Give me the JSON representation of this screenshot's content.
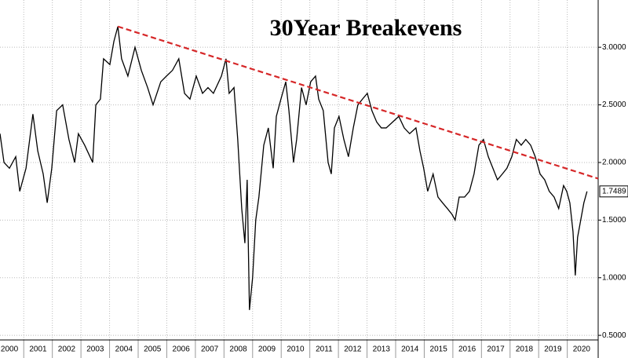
{
  "chart_data": {
    "type": "line",
    "title": "30Year Breakevens",
    "x": [
      2000.17,
      2000.31,
      2000.5,
      2000.72,
      2000.86,
      2001.08,
      2001.32,
      2001.49,
      2001.68,
      2001.82,
      2001.98,
      2002.15,
      2002.36,
      2002.58,
      2002.78,
      2002.91,
      2003.13,
      2003.41,
      2003.52,
      2003.68,
      2003.79,
      2004.01,
      2004.15,
      2004.29,
      2004.42,
      2004.64,
      2004.89,
      2005.11,
      2005.33,
      2005.52,
      2005.79,
      2005.99,
      2006.2,
      2006.42,
      2006.62,
      2006.81,
      2007.03,
      2007.25,
      2007.44,
      2007.63,
      2007.91,
      2008.07,
      2008.18,
      2008.35,
      2008.48,
      2008.62,
      2008.73,
      2008.81,
      2008.89,
      2009.0,
      2009.11,
      2009.22,
      2009.39,
      2009.55,
      2009.72,
      2009.83,
      2009.99,
      2010.16,
      2010.27,
      2010.43,
      2010.54,
      2010.71,
      2010.87,
      2011.03,
      2011.2,
      2011.31,
      2011.47,
      2011.64,
      2011.75,
      2011.86,
      2012.02,
      2012.19,
      2012.35,
      2012.52,
      2012.68,
      2012.84,
      2013.01,
      2013.17,
      2013.34,
      2013.5,
      2013.67,
      2013.89,
      2014.11,
      2014.3,
      2014.49,
      2014.71,
      2014.85,
      2014.98,
      2015.12,
      2015.31,
      2015.48,
      2015.64,
      2015.81,
      2015.97,
      2016.08,
      2016.22,
      2016.41,
      2016.58,
      2016.74,
      2016.91,
      2017.07,
      2017.24,
      2017.4,
      2017.56,
      2017.73,
      2017.89,
      2018.06,
      2018.22,
      2018.39,
      2018.55,
      2018.72,
      2018.88,
      2019.05,
      2019.21,
      2019.37,
      2019.54,
      2019.7,
      2019.87,
      2019.98,
      2020.09,
      2020.2,
      2020.28,
      2020.36,
      2020.47,
      2020.58,
      2020.69
    ],
    "series": [
      {
        "name": "30Year Breakevens",
        "color": "#000000",
        "values": [
          2.25,
          2.0,
          1.95,
          2.05,
          1.75,
          1.95,
          2.42,
          2.1,
          1.9,
          1.65,
          1.95,
          2.45,
          2.5,
          2.2,
          2.0,
          2.25,
          2.15,
          2.0,
          2.5,
          2.55,
          2.9,
          2.85,
          3.05,
          3.18,
          2.9,
          2.75,
          3.0,
          2.8,
          2.65,
          2.5,
          2.7,
          2.75,
          2.8,
          2.9,
          2.6,
          2.55,
          2.75,
          2.6,
          2.65,
          2.6,
          2.75,
          2.9,
          2.6,
          2.65,
          2.2,
          1.6,
          1.3,
          1.85,
          0.72,
          1.0,
          1.5,
          1.7,
          2.15,
          2.3,
          1.95,
          2.4,
          2.55,
          2.7,
          2.45,
          2.0,
          2.2,
          2.65,
          2.5,
          2.7,
          2.75,
          2.55,
          2.45,
          2.0,
          1.9,
          2.3,
          2.4,
          2.2,
          2.05,
          2.3,
          2.5,
          2.55,
          2.6,
          2.45,
          2.35,
          2.3,
          2.3,
          2.35,
          2.4,
          2.3,
          2.25,
          2.3,
          2.1,
          1.95,
          1.75,
          1.9,
          1.7,
          1.65,
          1.6,
          1.55,
          1.5,
          1.7,
          1.7,
          1.75,
          1.9,
          2.15,
          2.2,
          2.05,
          1.95,
          1.85,
          1.9,
          1.95,
          2.05,
          2.2,
          2.15,
          2.2,
          2.15,
          2.05,
          1.9,
          1.85,
          1.75,
          1.7,
          1.6,
          1.8,
          1.75,
          1.65,
          1.4,
          1.02,
          1.35,
          1.5,
          1.65,
          1.7489
        ]
      }
    ],
    "trendline": {
      "x": [
        2004.29,
        2021.08
      ],
      "values": [
        3.18,
        1.86
      ],
      "color": "#d62728",
      "style": "dashed"
    },
    "xlim": [
      2000.17,
      2021.08
    ],
    "xticks": [
      2000,
      2001,
      2002,
      2003,
      2004,
      2005,
      2006,
      2007,
      2008,
      2009,
      2010,
      2011,
      2012,
      2013,
      2014,
      2015,
      2016,
      2017,
      2018,
      2019,
      2020
    ],
    "ylim": [
      0.46,
      3.41
    ],
    "yticks": [
      {
        "value": 0.5,
        "label": "0.5000"
      },
      {
        "value": 1,
        "label": "1.0000"
      },
      {
        "value": 1.5,
        "label": "1.5000"
      },
      {
        "value": 2,
        "label": "2.0000"
      },
      {
        "value": 2.5,
        "label": "2.5000"
      },
      {
        "value": 3,
        "label": "3.0000"
      }
    ],
    "grid": true
  }
}
